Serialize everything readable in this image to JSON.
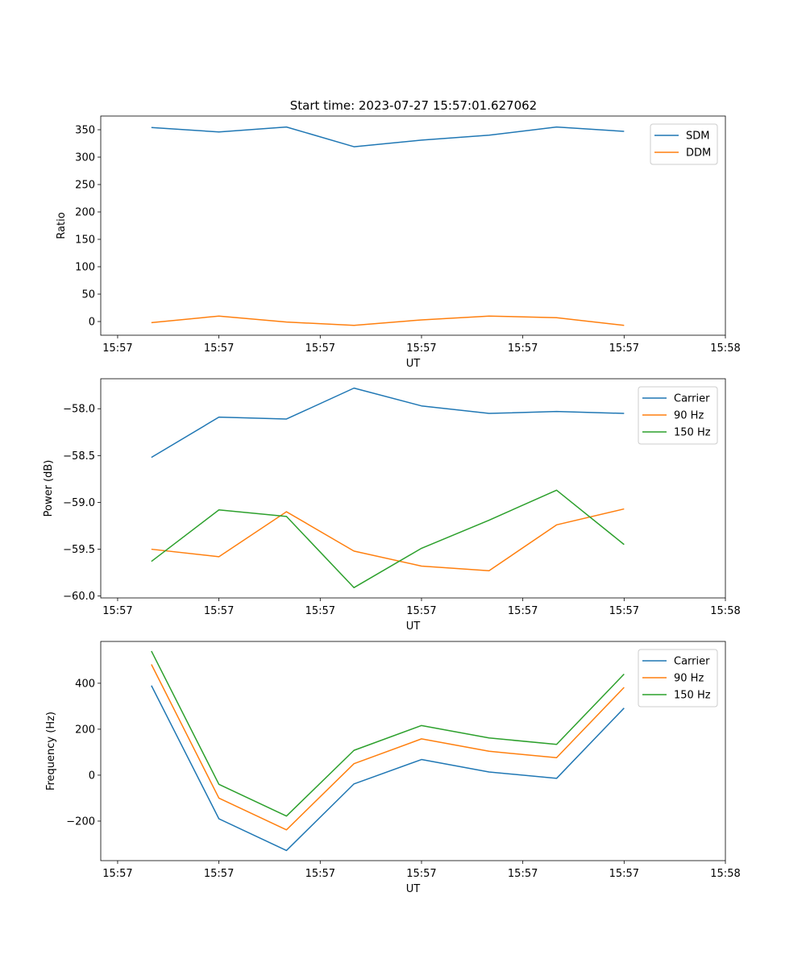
{
  "figure": {
    "title": "Start time: 2023-07-27 15:57:01.627062"
  },
  "chart_data": [
    {
      "type": "line",
      "ylabel": "Ratio",
      "xlabel": "UT",
      "xlim": [
        -0.75,
        8.5
      ],
      "x": [
        0,
        1,
        2,
        3,
        4,
        5,
        6,
        7
      ],
      "x_ticks": [
        {
          "value": -0.5,
          "label": "15:57"
        },
        {
          "value": 1.0,
          "label": "15:57"
        },
        {
          "value": 2.5,
          "label": "15:57"
        },
        {
          "value": 4.0,
          "label": "15:57"
        },
        {
          "value": 5.5,
          "label": "15:57"
        },
        {
          "value": 7.0,
          "label": "15:57"
        },
        {
          "value": 8.5,
          "label": "15:58"
        }
      ],
      "ylim": [
        -25,
        375
      ],
      "y_ticks": [
        0,
        50,
        100,
        150,
        200,
        250,
        300,
        350
      ],
      "legend_position": "upper-right",
      "series": [
        {
          "name": "SDM",
          "color": "#1f77b4",
          "values": [
            354,
            346,
            355,
            319,
            331,
            340,
            355,
            347
          ]
        },
        {
          "name": "DDM",
          "color": "#ff7f0e",
          "values": [
            -2,
            10,
            -1,
            -7,
            3,
            10,
            7,
            -7
          ]
        }
      ]
    },
    {
      "type": "line",
      "ylabel": "Power (dB)",
      "xlabel": "UT",
      "xlim": [
        -0.75,
        8.5
      ],
      "x": [
        0,
        1,
        2,
        3,
        4,
        5,
        6,
        7
      ],
      "x_ticks": [
        {
          "value": -0.5,
          "label": "15:57"
        },
        {
          "value": 1.0,
          "label": "15:57"
        },
        {
          "value": 2.5,
          "label": "15:57"
        },
        {
          "value": 4.0,
          "label": "15:57"
        },
        {
          "value": 5.5,
          "label": "15:57"
        },
        {
          "value": 7.0,
          "label": "15:57"
        },
        {
          "value": 8.5,
          "label": "15:58"
        }
      ],
      "ylim": [
        -60.02,
        -57.68
      ],
      "y_ticks": [
        -60.0,
        -59.5,
        -59.0,
        -58.5,
        -58.0
      ],
      "y_tick_decimals": 1,
      "legend_position": "upper-right",
      "series": [
        {
          "name": "Carrier",
          "color": "#1f77b4",
          "values": [
            -58.52,
            -58.09,
            -58.11,
            -57.78,
            -57.97,
            -58.05,
            -58.03,
            -58.05
          ]
        },
        {
          "name": "90 Hz",
          "color": "#ff7f0e",
          "values": [
            -59.5,
            -59.58,
            -59.1,
            -59.52,
            -59.68,
            -59.73,
            -59.24,
            -59.07
          ]
        },
        {
          "name": "150 Hz",
          "color": "#2ca02c",
          "values": [
            -59.63,
            -59.08,
            -59.15,
            -59.91,
            -59.49,
            -59.19,
            -58.87,
            -59.45
          ]
        }
      ]
    },
    {
      "type": "line",
      "ylabel": "Frequency (Hz)",
      "xlabel": "UT",
      "xlim": [
        -0.75,
        8.5
      ],
      "x": [
        0,
        1,
        2,
        3,
        4,
        5,
        6,
        7
      ],
      "x_ticks": [
        {
          "value": -0.5,
          "label": "15:57"
        },
        {
          "value": 1.0,
          "label": "15:57"
        },
        {
          "value": 2.5,
          "label": "15:57"
        },
        {
          "value": 4.0,
          "label": "15:57"
        },
        {
          "value": 5.5,
          "label": "15:57"
        },
        {
          "value": 7.0,
          "label": "15:57"
        },
        {
          "value": 8.5,
          "label": "15:58"
        }
      ],
      "ylim": [
        -372,
        582
      ],
      "y_ticks": [
        -200,
        0,
        200,
        400
      ],
      "legend_position": "upper-right",
      "series": [
        {
          "name": "Carrier",
          "color": "#1f77b4",
          "values": [
            390,
            -190,
            -328,
            -38,
            68,
            14,
            -14,
            292
          ]
        },
        {
          "name": "90 Hz",
          "color": "#ff7f0e",
          "values": [
            482,
            -100,
            -238,
            50,
            158,
            104,
            76,
            382
          ]
        },
        {
          "name": "150 Hz",
          "color": "#2ca02c",
          "values": [
            540,
            -40,
            -178,
            108,
            216,
            162,
            134,
            440
          ]
        }
      ]
    }
  ]
}
